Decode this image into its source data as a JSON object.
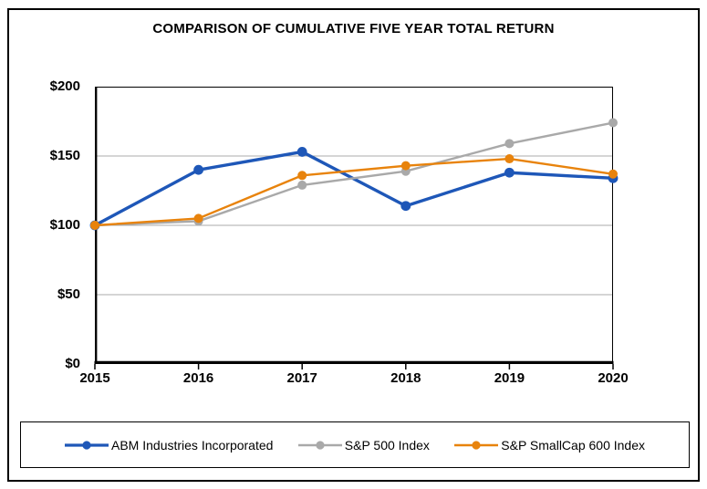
{
  "title": "COMPARISON OF CUMULATIVE FIVE YEAR TOTAL RETURN",
  "chart_data": {
    "type": "line",
    "categories": [
      "2015",
      "2016",
      "2017",
      "2018",
      "2019",
      "2020"
    ],
    "series": [
      {
        "name": "ABM Industries Incorporated",
        "color": "#1E57B8",
        "values": [
          100,
          140,
          153,
          114,
          138,
          134
        ],
        "line_width": 3.4,
        "marker_radius": 5.4
      },
      {
        "name": "S&P 500 Index",
        "color": "#A9A9A9",
        "values": [
          100,
          103,
          129,
          139,
          159,
          174
        ],
        "line_width": 2.4,
        "marker_radius": 5.0
      },
      {
        "name": "S&P SmallCap 600 Index",
        "color": "#E8830C",
        "values": [
          100,
          105,
          136,
          143,
          148,
          137
        ],
        "line_width": 2.4,
        "marker_radius": 5.0
      }
    ],
    "title": "COMPARISON OF CUMULATIVE FIVE YEAR TOTAL RETURN",
    "xlabel": "",
    "ylabel": "",
    "ylim": [
      0,
      200
    ],
    "y_tick_values": [
      0,
      50,
      100,
      150,
      200
    ],
    "y_tick_labels": [
      "$0",
      "$50",
      "$100",
      "$150",
      "$200"
    ],
    "grid": "horizontal-gridlines-on",
    "legend_position": "bottom-boxed"
  },
  "colors": {
    "axis": "#000000",
    "gridline": "#ABABAB",
    "background": "#FFFFFF",
    "text": "#000000"
  }
}
